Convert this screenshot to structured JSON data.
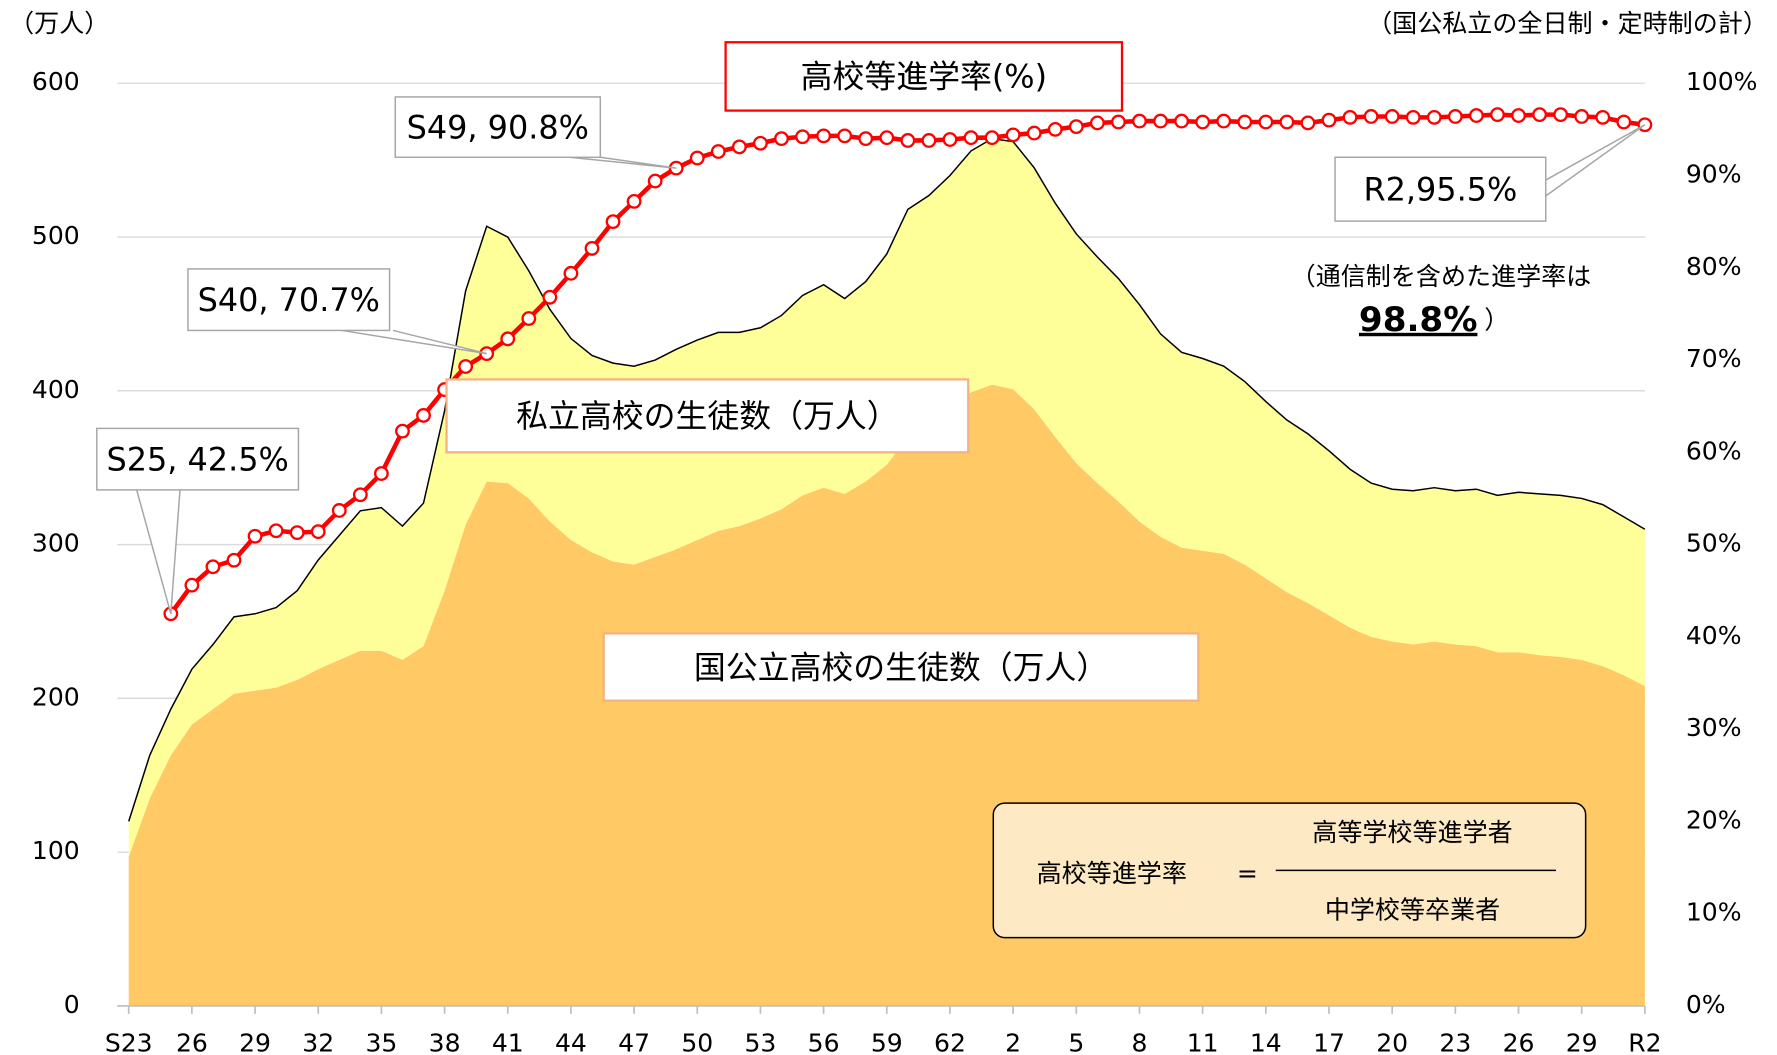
{
  "chart_data": {
    "type": "area",
    "y_label": "（万人）",
    "note": "（国公私立の全日制・定時制の計）",
    "categories": [
      "S23",
      null,
      null,
      "26",
      null,
      null,
      "29",
      null,
      null,
      "32",
      null,
      null,
      "35",
      null,
      null,
      "38",
      null,
      null,
      "41",
      null,
      null,
      "44",
      null,
      null,
      "47",
      null,
      null,
      "50",
      null,
      null,
      "53",
      null,
      null,
      "56",
      null,
      null,
      "59",
      null,
      null,
      "62",
      null,
      null,
      "2",
      null,
      null,
      "5",
      null,
      null,
      "8",
      null,
      null,
      "11",
      null,
      null,
      "14",
      null,
      null,
      "17",
      null,
      null,
      "20",
      null,
      null,
      "23",
      null,
      null,
      "26",
      null,
      null,
      "29",
      null,
      null,
      "R2"
    ],
    "series": [
      {
        "name": "国公立高校の生徒数（万人）",
        "color": "#ffc966",
        "values": [
          97,
          135,
          163,
          183,
          193,
          203,
          205,
          207,
          212,
          219,
          225,
          231,
          231,
          225,
          234,
          270,
          313,
          341,
          340,
          330,
          315,
          303,
          295,
          289,
          287,
          292,
          297,
          303,
          309,
          312,
          317,
          323,
          332,
          337,
          333,
          341,
          352,
          370,
          385,
          393,
          399,
          404,
          401,
          388,
          370,
          353,
          340,
          328,
          315,
          305,
          298,
          296,
          294,
          287,
          278,
          269,
          262,
          254,
          246,
          240,
          237,
          235,
          237,
          235,
          234,
          230,
          230,
          228,
          227,
          225,
          221,
          215,
          208
        ]
      },
      {
        "name": "私立高校の生徒数（万人）",
        "color": "#ffff99",
        "values": [
          23,
          28,
          30,
          36,
          42,
          50,
          50,
          52,
          58,
          71,
          81,
          91,
          93,
          87,
          93,
          117,
          152,
          166,
          160,
          148,
          138,
          131,
          128,
          129,
          129,
          128,
          130,
          130,
          129,
          126,
          124,
          126,
          130,
          132,
          127,
          130,
          137,
          148,
          142,
          147,
          157,
          160,
          161,
          157,
          152,
          149,
          147,
          145,
          141,
          132,
          127,
          125,
          122,
          119,
          115,
          112,
          110,
          107,
          103,
          100,
          99,
          100,
          100,
          100,
          102,
          102,
          104,
          105,
          105,
          105,
          105,
          103,
          102
        ]
      },
      {
        "name": "高校等進学率(%)",
        "color": "#ff0000",
        "type": "line",
        "axis": "y2",
        "values": [
          null,
          null,
          42.5,
          45.6,
          47.6,
          48.3,
          50.9,
          51.5,
          51.3,
          51.4,
          53.7,
          55.4,
          57.7,
          62.3,
          64.0,
          66.8,
          69.3,
          70.7,
          72.3,
          74.5,
          76.8,
          79.4,
          82.1,
          85.0,
          87.2,
          89.4,
          90.8,
          91.9,
          92.6,
          93.1,
          93.5,
          94.0,
          94.2,
          94.3,
          94.3,
          94.0,
          94.1,
          93.8,
          93.8,
          93.9,
          94.1,
          94.1,
          94.4,
          94.6,
          95.0,
          95.3,
          95.7,
          95.8,
          95.9,
          95.9,
          95.9,
          95.8,
          95.9,
          95.8,
          95.8,
          95.8,
          95.7,
          96.0,
          96.3,
          96.4,
          96.4,
          96.3,
          96.3,
          96.4,
          96.5,
          96.6,
          96.5,
          96.6,
          96.6,
          96.4,
          96.3,
          95.8,
          95.5
        ]
      }
    ],
    "ylim": [
      0,
      600
    ],
    "yticks": [
      0,
      100,
      200,
      300,
      400,
      500,
      600
    ],
    "y2lim": [
      0,
      100
    ],
    "y2ticks": [
      {
        "value": 0,
        "label": "0%"
      },
      {
        "value": 10,
        "label": "10%"
      },
      {
        "value": 20,
        "label": "20%"
      },
      {
        "value": 30,
        "label": "30%"
      },
      {
        "value": 40,
        "label": "40%"
      },
      {
        "value": 50,
        "label": "50%"
      },
      {
        "value": 60,
        "label": "60%"
      },
      {
        "value": 70,
        "label": "70%"
      },
      {
        "value": 80,
        "label": "80%"
      },
      {
        "value": 90,
        "label": "90%"
      },
      {
        "value": 100,
        "label": "100%"
      }
    ],
    "grid": true,
    "annotations": [
      "S25, 42.5%",
      "S40, 70.7%",
      "S49, 90.8%",
      "R2,95.5%"
    ],
    "rate_note": [
      "（通信制を含めた進学率は",
      "98.8%",
      "）"
    ],
    "formula": {
      "left": "高校等進学率",
      "equals": "=",
      "numerator": "高等学校等進学者",
      "denominator": "中学校等卒業者"
    }
  }
}
